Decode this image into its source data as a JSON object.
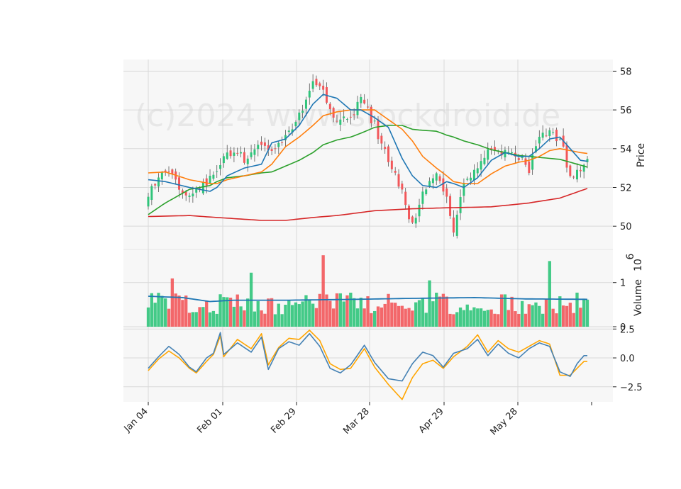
{
  "chart_data": {
    "type": "candlestick",
    "watermark": "(c)2024 www.stockdroid.de",
    "colors": {
      "up": "#2fc47a",
      "down": "#f2575a",
      "ma_short": "#1f77b4",
      "ma_mid": "#ff7f0e",
      "ma_long": "#2ca02c",
      "ma_200": "#d62728",
      "volume_avg": "#1f77b4",
      "osc_a": "#4682b4",
      "osc_b": "#ffa500",
      "panel_bg": "#f7f7f7",
      "grid": "#d9d9d9"
    },
    "x_tick_labels": [
      "Jan 04",
      "Feb 01",
      "Feb 29",
      "Mar 28",
      "Apr 29",
      "May 28"
    ],
    "price_panel": {
      "ylabel": "Price",
      "ylim": [
        48.8,
        58.6
      ],
      "yticks": [
        50,
        52,
        54,
        56,
        58
      ],
      "ytick_labels": [
        "50",
        "52",
        "54",
        "56",
        "58"
      ]
    },
    "volume_panel": {
      "ylabel": "Volume",
      "scale_label": "10",
      "scale_exponent": "6",
      "ylim": [
        0,
        1.75
      ],
      "yticks": [
        0,
        1
      ],
      "ytick_labels": [
        "0",
        "1"
      ]
    },
    "oscillator_panel": {
      "ylim": [
        -3.8,
        2.7
      ],
      "yticks": [
        2.5,
        0,
        -2.5
      ],
      "ytick_labels": [
        "2.5",
        "0.0",
        "−2.5"
      ]
    },
    "anchors": [
      {
        "i": 0,
        "c": 51.6,
        "m1": 52.4,
        "m2": 52.75,
        "m3": 50.6,
        "m4": 50.5
      },
      {
        "i": 5,
        "c": 52.9,
        "m1": 52.3,
        "m2": 52.8,
        "m3": 51.2
      },
      {
        "i": 12,
        "c": 51.5,
        "m1": 52.0,
        "m2": 52.4,
        "m3": 51.9,
        "m4": 50.55
      },
      {
        "i": 18,
        "c": 52.4,
        "m1": 51.8,
        "m2": 52.2,
        "m3": 52.1
      },
      {
        "i": 20,
        "c": 52.6,
        "m1": 52.0,
        "m2": 52.2,
        "m3": 52.3,
        "m4": 50.45
      },
      {
        "i": 23,
        "c": 53.9,
        "m1": 52.6,
        "m2": 52.4,
        "m3": 52.5
      },
      {
        "i": 28,
        "c": 53.5,
        "m1": 53.0,
        "m2": 52.6,
        "m3": 52.6
      },
      {
        "i": 33,
        "c": 54.1,
        "m1": 53.2,
        "m2": 52.8,
        "m3": 52.75,
        "m4": 50.3
      },
      {
        "i": 36,
        "c": 54.0,
        "m1": 54.3,
        "m2": 53.2,
        "m3": 52.8
      },
      {
        "i": 40,
        "c": 54.6,
        "m1": 54.5,
        "m2": 54.1,
        "m3": 53.1,
        "m4": 50.3
      },
      {
        "i": 44,
        "c": 55.8,
        "m1": 55.2,
        "m2": 54.6,
        "m3": 53.4
      },
      {
        "i": 48,
        "c": 57.4,
        "m1": 56.3,
        "m2": 55.2,
        "m3": 53.8,
        "m4": 50.45
      },
      {
        "i": 51,
        "c": 56.8,
        "m1": 56.8,
        "m2": 55.7,
        "m3": 54.2
      },
      {
        "i": 55,
        "c": 55.5,
        "m1": 56.6,
        "m2": 55.9,
        "m3": 54.45,
        "m4": 50.55
      },
      {
        "i": 59,
        "c": 55.4,
        "m1": 56.0,
        "m2": 56.0,
        "m3": 54.6
      },
      {
        "i": 62,
        "c": 56.6,
        "m1": 56.0,
        "m2": 56.0,
        "m3": 54.8
      },
      {
        "i": 66,
        "c": 55.2,
        "m1": 55.6,
        "m2": 56.0,
        "m3": 55.1,
        "m4": 50.8
      },
      {
        "i": 70,
        "c": 53.3,
        "m1": 55.1,
        "m2": 55.5,
        "m3": 55.2
      },
      {
        "i": 74,
        "c": 51.8,
        "m1": 53.5,
        "m2": 55.0,
        "m3": 55.2
      },
      {
        "i": 77,
        "c": 50.0,
        "m1": 52.6,
        "m2": 54.4,
        "m3": 55.0,
        "m4": 50.9
      },
      {
        "i": 80,
        "c": 51.8,
        "m1": 52.1,
        "m2": 53.6,
        "m3": 54.95
      },
      {
        "i": 84,
        "c": 52.8,
        "m1": 52.0,
        "m2": 53.0,
        "m3": 54.9
      },
      {
        "i": 87,
        "c": 51.5,
        "m1": 52.3,
        "m2": 52.6,
        "m3": 54.7,
        "m4": 50.95
      },
      {
        "i": 89,
        "c": 49.7,
        "m1": 52.2,
        "m2": 52.3,
        "m3": 54.6
      },
      {
        "i": 92,
        "c": 52.3,
        "m1": 52.0,
        "m2": 52.2,
        "m3": 54.4
      },
      {
        "i": 96,
        "c": 52.9,
        "m1": 52.5,
        "m2": 52.2,
        "m3": 54.2
      },
      {
        "i": 100,
        "c": 54.1,
        "m1": 53.4,
        "m2": 52.7,
        "m3": 53.95,
        "m4": 51.0
      },
      {
        "i": 104,
        "c": 53.8,
        "m1": 53.8,
        "m2": 53.1,
        "m3": 53.8
      },
      {
        "i": 108,
        "c": 53.6,
        "m1": 53.6,
        "m2": 53.3,
        "m3": 53.65
      },
      {
        "i": 111,
        "c": 52.9,
        "m1": 53.6,
        "m2": 53.4,
        "m3": 53.6,
        "m4": 51.2
      },
      {
        "i": 114,
        "c": 54.6,
        "m1": 54.0,
        "m2": 53.6,
        "m3": 53.55
      },
      {
        "i": 117,
        "c": 54.9,
        "m1": 54.5,
        "m2": 53.9,
        "m3": 53.5
      },
      {
        "i": 120,
        "c": 54.5,
        "m1": 54.6,
        "m2": 54.0,
        "m3": 53.45,
        "m4": 51.45
      },
      {
        "i": 123,
        "c": 52.6,
        "m1": 54.0,
        "m2": 53.9,
        "m3": 53.3
      },
      {
        "i": 126,
        "c": 53.0,
        "m1": 53.4,
        "m2": 53.8,
        "m3": 53.15
      },
      {
        "i": 128,
        "c": 53.4,
        "m1": 53.35,
        "m2": 53.75,
        "m3": 53.05,
        "m4": 51.95
      }
    ],
    "volume_avg_anchors": [
      {
        "i": 0,
        "v": 0.69
      },
      {
        "i": 10,
        "v": 0.66
      },
      {
        "i": 18,
        "v": 0.57
      },
      {
        "i": 25,
        "v": 0.6
      },
      {
        "i": 40,
        "v": 0.6
      },
      {
        "i": 60,
        "v": 0.62
      },
      {
        "i": 75,
        "v": 0.64
      },
      {
        "i": 95,
        "v": 0.66
      },
      {
        "i": 110,
        "v": 0.63
      },
      {
        "i": 128,
        "v": 0.62
      }
    ],
    "oscillator_anchors": [
      {
        "i": 0,
        "a": -0.9,
        "b": -1.1
      },
      {
        "i": 3,
        "a": 0.1,
        "b": -0.1
      },
      {
        "i": 6,
        "a": 1.0,
        "b": 0.6
      },
      {
        "i": 9,
        "a": 0.3,
        "b": 0.0
      },
      {
        "i": 12,
        "a": -0.8,
        "b": -0.9
      },
      {
        "i": 14,
        "a": -1.2,
        "b": -1.3
      },
      {
        "i": 17,
        "a": 0.0,
        "b": -0.3
      },
      {
        "i": 19,
        "a": 0.4,
        "b": 0.3
      },
      {
        "i": 21,
        "a": 2.2,
        "b": 1.9
      },
      {
        "i": 22,
        "a": 0.3,
        "b": 0.1
      },
      {
        "i": 26,
        "a": 1.3,
        "b": 1.6
      },
      {
        "i": 30,
        "a": 0.5,
        "b": 0.8
      },
      {
        "i": 33,
        "a": 1.8,
        "b": 2.1
      },
      {
        "i": 35,
        "a": -1.0,
        "b": -0.6
      },
      {
        "i": 38,
        "a": 0.8,
        "b": 0.9
      },
      {
        "i": 41,
        "a": 1.4,
        "b": 1.7
      },
      {
        "i": 44,
        "a": 1.1,
        "b": 1.6
      },
      {
        "i": 47,
        "a": 2.1,
        "b": 2.4
      },
      {
        "i": 50,
        "a": 1.0,
        "b": 1.5
      },
      {
        "i": 53,
        "a": -0.9,
        "b": -0.5
      },
      {
        "i": 56,
        "a": -1.3,
        "b": -1.0
      },
      {
        "i": 59,
        "a": -0.6,
        "b": -0.9
      },
      {
        "i": 63,
        "a": 1.1,
        "b": 0.8
      },
      {
        "i": 66,
        "a": -0.4,
        "b": -0.8
      },
      {
        "i": 70,
        "a": -1.8,
        "b": -2.3
      },
      {
        "i": 74,
        "a": -2.0,
        "b": -3.6
      },
      {
        "i": 77,
        "a": -0.5,
        "b": -1.7
      },
      {
        "i": 80,
        "a": 0.5,
        "b": -0.5
      },
      {
        "i": 83,
        "a": 0.2,
        "b": -0.2
      },
      {
        "i": 86,
        "a": -0.8,
        "b": -0.9
      },
      {
        "i": 89,
        "a": 0.4,
        "b": 0.1
      },
      {
        "i": 93,
        "a": 0.8,
        "b": 1.0
      },
      {
        "i": 96,
        "a": 1.6,
        "b": 2.0
      },
      {
        "i": 99,
        "a": 0.2,
        "b": 0.5
      },
      {
        "i": 102,
        "a": 1.2,
        "b": 1.5
      },
      {
        "i": 105,
        "a": 0.4,
        "b": 0.8
      },
      {
        "i": 108,
        "a": 0.0,
        "b": 0.5
      },
      {
        "i": 111,
        "a": 0.8,
        "b": 1.0
      },
      {
        "i": 114,
        "a": 1.3,
        "b": 1.5
      },
      {
        "i": 117,
        "a": 1.0,
        "b": 1.2
      },
      {
        "i": 120,
        "a": -1.2,
        "b": -1.5
      },
      {
        "i": 123,
        "a": -1.6,
        "b": -1.5
      },
      {
        "i": 125,
        "a": -0.5,
        "b": -0.9
      },
      {
        "i": 127,
        "a": 0.2,
        "b": -0.3
      }
    ]
  }
}
